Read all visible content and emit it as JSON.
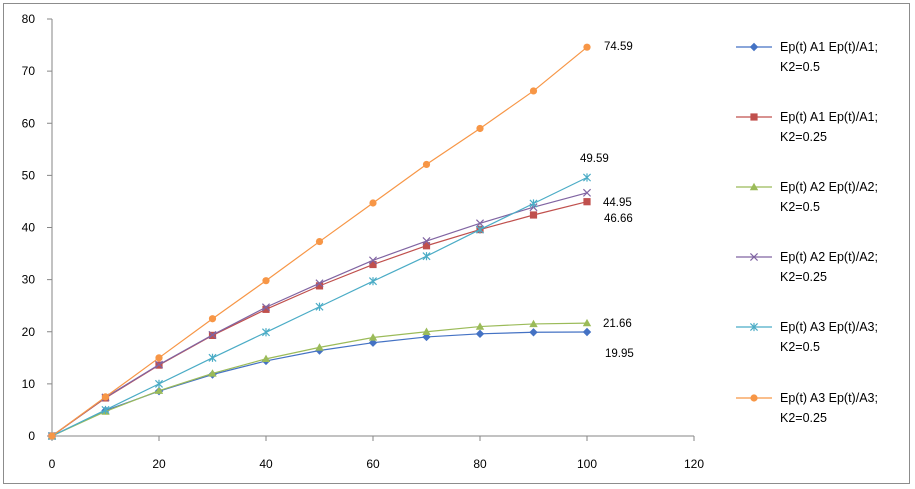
{
  "chart_data": {
    "type": "line",
    "x": [
      0,
      10,
      20,
      30,
      40,
      50,
      60,
      70,
      80,
      90,
      100
    ],
    "xlim": [
      0,
      120
    ],
    "ylim": [
      0,
      80
    ],
    "x_ticks": [
      "0",
      "20",
      "40",
      "60",
      "80",
      "100",
      "120"
    ],
    "y_ticks": [
      "0",
      "10",
      "20",
      "30",
      "40",
      "50",
      "60",
      "70",
      "80"
    ],
    "grid": false,
    "legend_position": "right",
    "series": [
      {
        "name_line1": "Ep(t) A1 Ep(t)/A1;",
        "name_line2": "K2=0.5",
        "color": "#4472c4",
        "marker": "diamond",
        "values": [
          0,
          4.9,
          8.6,
          11.8,
          14.4,
          16.4,
          17.9,
          19.0,
          19.6,
          19.9,
          19.95
        ],
        "end_label": "19.95"
      },
      {
        "name_line1": "Ep(t) A1 Ep(t)/A1;",
        "name_line2": "K2=0.25",
        "color": "#c0504d",
        "marker": "square",
        "values": [
          0,
          7.3,
          13.6,
          19.3,
          24.3,
          28.8,
          32.9,
          36.5,
          39.6,
          42.4,
          44.95
        ],
        "end_label": "44.95"
      },
      {
        "name_line1": "Ep(t) A2 Ep(t)/A2;",
        "name_line2": "K2=0.5",
        "color": "#9bbb59",
        "marker": "triangle",
        "values": [
          0,
          4.7,
          8.7,
          12.0,
          14.8,
          17.0,
          18.9,
          20.0,
          21.0,
          21.5,
          21.66
        ],
        "end_label": "21.66"
      },
      {
        "name_line1": "Ep(t) A2 Ep(t)/A2;",
        "name_line2": "K2=0.25",
        "color": "#8064a2",
        "marker": "x",
        "values": [
          0,
          7.4,
          13.7,
          19.4,
          24.7,
          29.3,
          33.7,
          37.4,
          40.8,
          43.9,
          46.66
        ],
        "end_label": "46.66"
      },
      {
        "name_line1": "Ep(t) A3 Ep(t)/A3;",
        "name_line2": "K2=0.5",
        "color": "#4bacc6",
        "marker": "star",
        "values": [
          0,
          5.0,
          10.0,
          15.0,
          19.9,
          24.8,
          29.7,
          34.5,
          39.6,
          44.6,
          49.59
        ],
        "end_label": "49.59"
      },
      {
        "name_line1": "Ep(t) A3 Ep(t)/A3;",
        "name_line2": "K2=0.25",
        "color": "#f79646",
        "marker": "circle",
        "values": [
          0,
          7.5,
          15.0,
          22.5,
          29.8,
          37.3,
          44.7,
          52.1,
          59.0,
          66.2,
          74.59
        ],
        "end_label": "74.59"
      }
    ]
  }
}
